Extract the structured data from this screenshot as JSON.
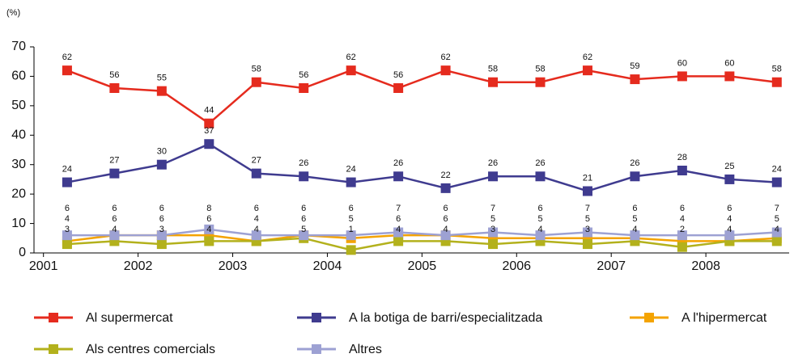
{
  "chart_data": {
    "type": "line",
    "y_label": "(%)",
    "x": [
      2001.25,
      2001.75,
      2002.25,
      2002.75,
      2003.25,
      2003.75,
      2004.25,
      2004.75,
      2005.25,
      2005.75,
      2006.25,
      2006.75,
      2007.25,
      2007.75,
      2008.25,
      2008.75
    ],
    "xlim": [
      2000.9,
      2008.88
    ],
    "xticks": [
      2001,
      2002,
      2003,
      2004,
      2005,
      2006,
      2007,
      2008
    ],
    "ylim": [
      0,
      70
    ],
    "yticks": [
      0,
      10,
      20,
      30,
      40,
      50,
      60,
      70
    ],
    "series": [
      {
        "name": "Al supermercat",
        "color": "#e52b1e",
        "values": [
          62,
          56,
          55,
          44,
          58,
          56,
          62,
          56,
          62,
          58,
          58,
          62,
          59,
          60,
          60,
          58
        ]
      },
      {
        "name": "A la botiga de barri/especialitzada",
        "color": "#3f3b8f",
        "values": [
          24,
          27,
          30,
          37,
          27,
          26,
          24,
          26,
          22,
          26,
          26,
          21,
          26,
          28,
          25,
          24
        ]
      },
      {
        "name": "A l'hipermercat",
        "color": "#f4a300",
        "values": [
          4,
          6,
          6,
          6,
          4,
          6,
          5,
          6,
          6,
          5,
          5,
          5,
          5,
          4,
          4,
          5
        ]
      },
      {
        "name": "Als centres comercials",
        "color": "#b3b11c",
        "values": [
          3,
          4,
          3,
          4,
          4,
          5,
          1,
          4,
          4,
          3,
          4,
          3,
          4,
          2,
          4,
          4
        ]
      },
      {
        "name": "Altres",
        "color": "#9da1d3",
        "values": [
          6,
          6,
          6,
          8,
          6,
          6,
          6,
          7,
          6,
          7,
          6,
          7,
          6,
          6,
          6,
          7
        ]
      }
    ]
  }
}
